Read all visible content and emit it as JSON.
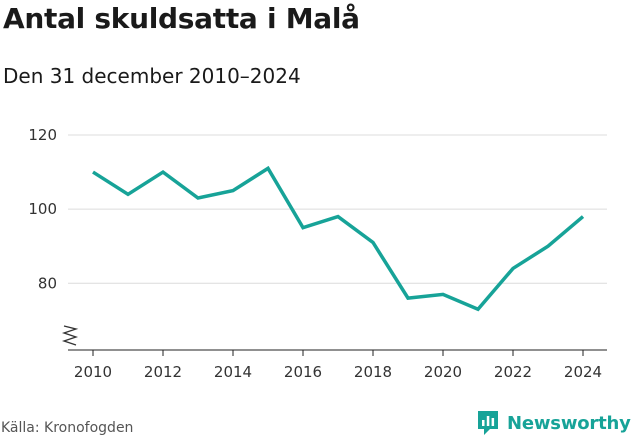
{
  "title": "Antal skuldsatta i Malå",
  "subtitle": "Den 31 december 2010–2024",
  "source": "Källa: Kronofogden",
  "brand": {
    "name": "Newsworthy",
    "icon": "newsworthy-chart-icon",
    "color": "#17a398"
  },
  "chart_data": {
    "type": "line",
    "title": "Antal skuldsatta i Malå",
    "subtitle": "Den 31 december 2010–2024",
    "x": [
      2010,
      2011,
      2012,
      2013,
      2014,
      2015,
      2016,
      2017,
      2018,
      2019,
      2020,
      2021,
      2022,
      2023,
      2024
    ],
    "series": [
      {
        "values": [
          110,
          104,
          110,
          103,
          105,
          111,
          95,
          98,
          91,
          76,
          77,
          73,
          84,
          90,
          98
        ],
        "color": "#17a398"
      }
    ],
    "xticks": [
      2010,
      2012,
      2014,
      2016,
      2018,
      2020,
      2022,
      2024
    ],
    "yticks": [
      80,
      100,
      120
    ],
    "ylim": [
      62,
      120
    ],
    "xlim": [
      2010,
      2024
    ],
    "axis_break": true,
    "grid": "horizontal",
    "legend": "none",
    "xlabel": "",
    "ylabel": ""
  }
}
